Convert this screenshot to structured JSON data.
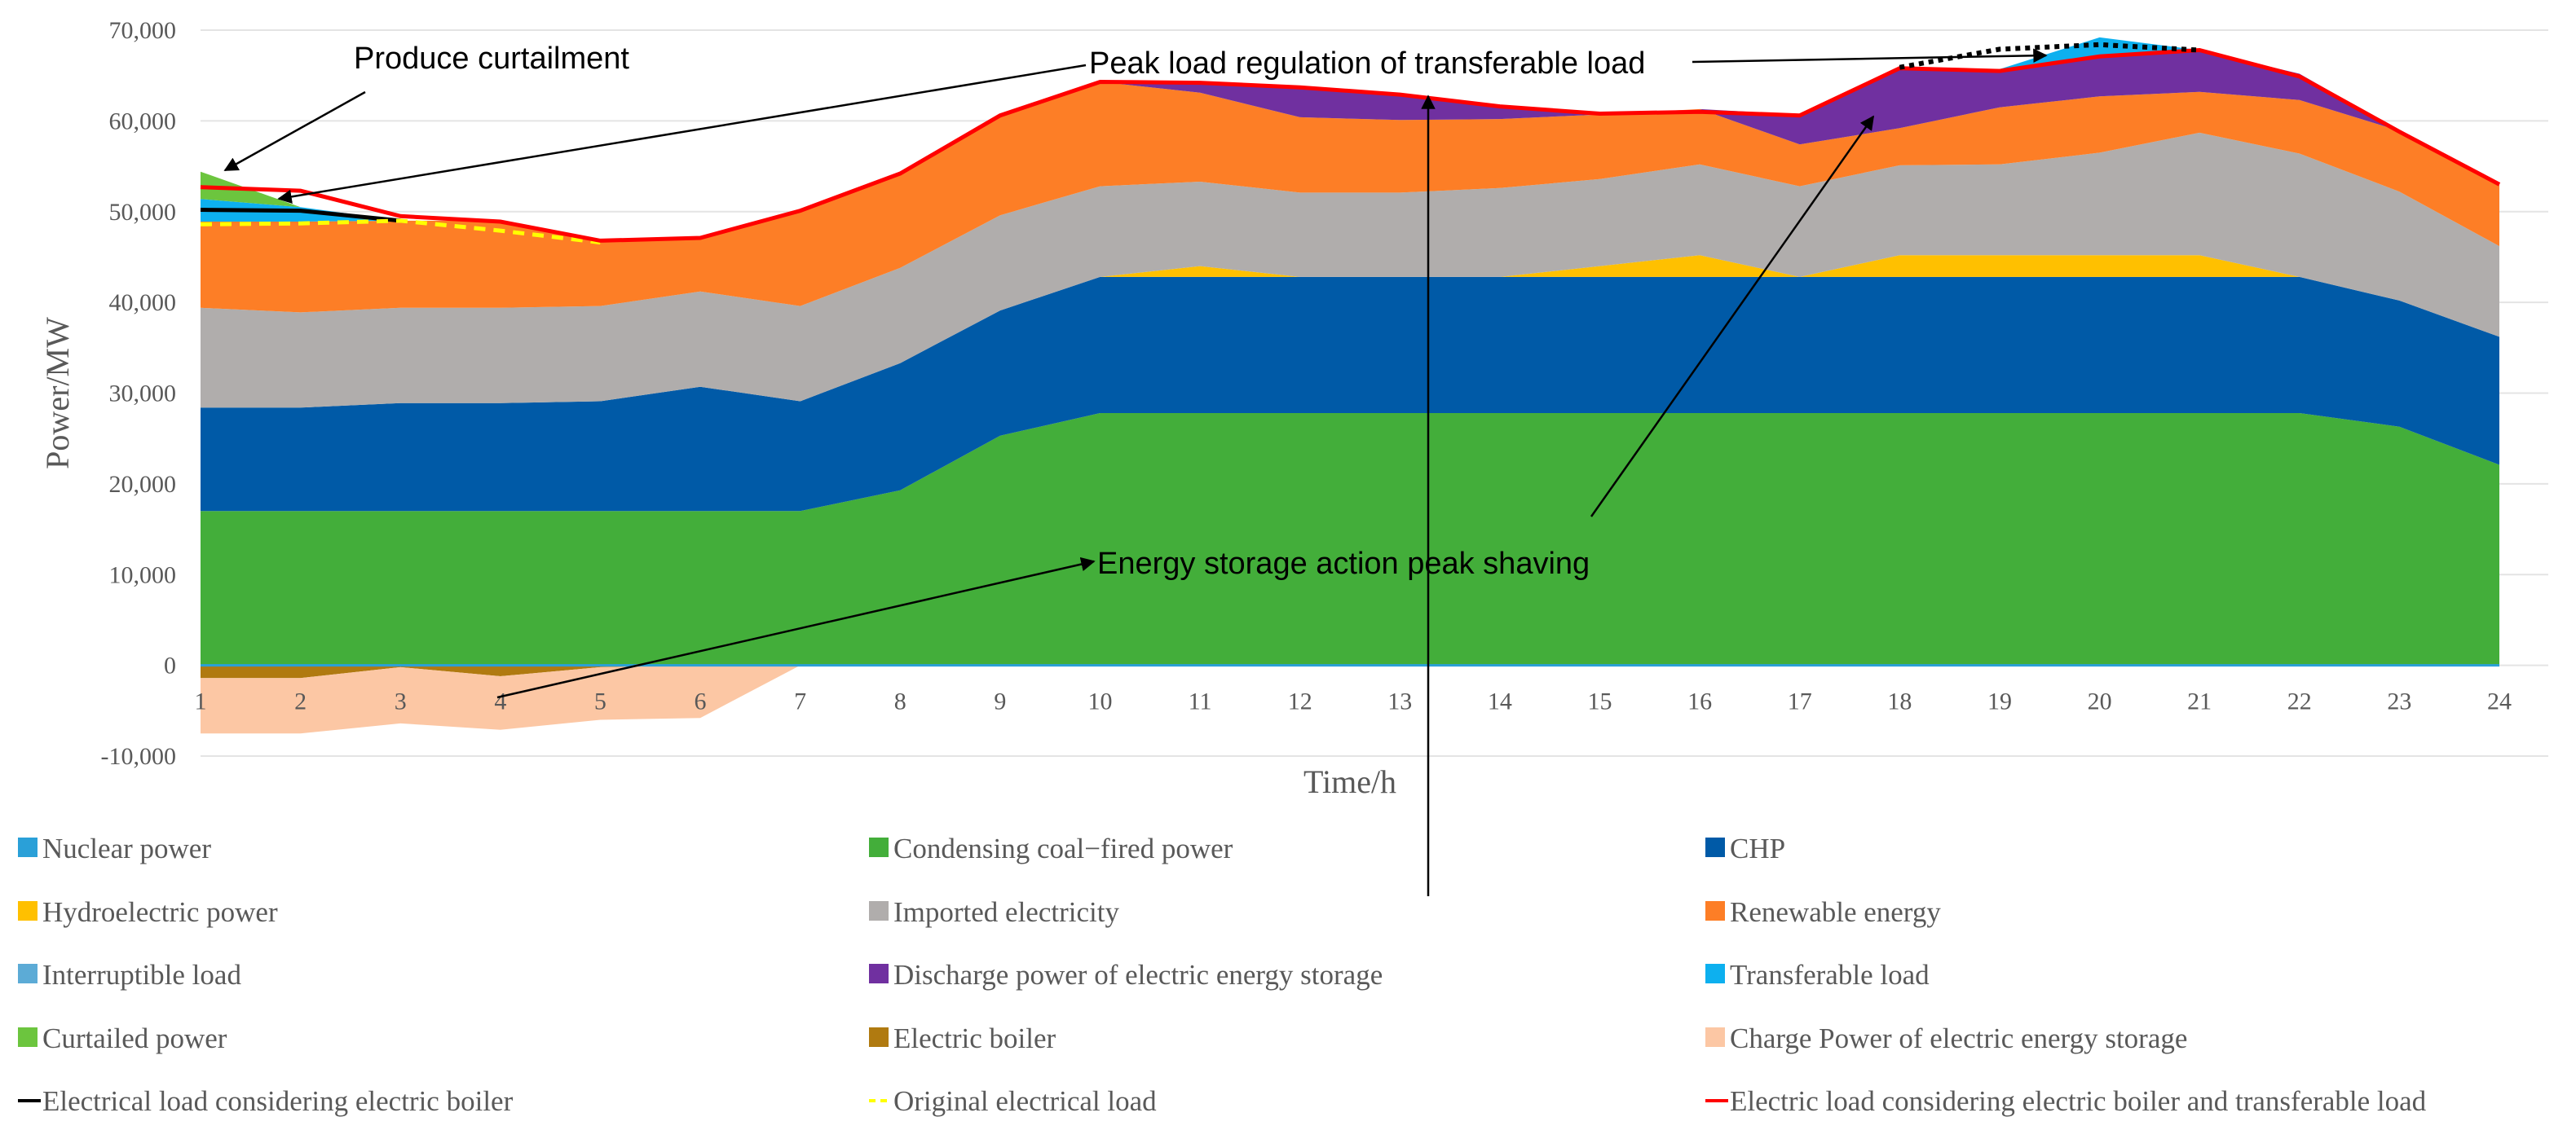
{
  "chart_data": {
    "type": "area",
    "title": "",
    "xlabel": "Time/h",
    "ylabel": "Power/MW",
    "ylim": [
      -10000,
      70000
    ],
    "yticks": [
      -10000,
      0,
      10000,
      20000,
      30000,
      40000,
      50000,
      60000,
      70000
    ],
    "ytick_labels": [
      "-10,000",
      "0",
      "10,000",
      "20,000",
      "30,000",
      "40,000",
      "50,000",
      "60,000",
      "70,000"
    ],
    "x": [
      1,
      2,
      3,
      4,
      5,
      6,
      7,
      8,
      9,
      10,
      11,
      12,
      13,
      14,
      15,
      16,
      17,
      18,
      19,
      20,
      21,
      22,
      23,
      24
    ],
    "x_labels": [
      "1",
      "2",
      "3",
      "4",
      "5",
      "6",
      "7",
      "8",
      "9",
      "10",
      "11",
      "12",
      "13",
      "14",
      "15",
      "16",
      "17",
      "18",
      "19",
      "20",
      "21",
      "22",
      "23",
      "24"
    ],
    "grid": "horizontal",
    "legend_position": "bottom",
    "stacked_series": [
      {
        "name": "Nuclear power",
        "color": "#2aa0d8",
        "values": [
          100,
          100,
          100,
          100,
          100,
          100,
          100,
          100,
          100,
          100,
          100,
          100,
          100,
          100,
          100,
          100,
          100,
          100,
          100,
          100,
          100,
          100,
          100,
          100
        ]
      },
      {
        "name": "Condensing coal−fired power",
        "color": "#43ae3a",
        "values": [
          16900,
          16900,
          16900,
          16900,
          16900,
          16900,
          16900,
          19200,
          25200,
          27700,
          27700,
          27700,
          27700,
          27700,
          27700,
          27700,
          27700,
          27700,
          27700,
          27700,
          27700,
          27700,
          26200,
          22000
        ]
      },
      {
        "name": "CHP",
        "color": "#005aa7",
        "values": [
          11400,
          11400,
          11900,
          11900,
          12100,
          13700,
          12100,
          14000,
          13800,
          15000,
          15000,
          15000,
          15000,
          15000,
          15000,
          15000,
          15000,
          15000,
          15000,
          15000,
          15000,
          15000,
          13900,
          14100
        ]
      },
      {
        "name": "Hydroelectric power",
        "color": "#ffc000",
        "values": [
          0,
          0,
          0,
          0,
          0,
          0,
          0,
          0,
          0,
          0,
          1200,
          0,
          0,
          0,
          1200,
          2400,
          0,
          2400,
          2400,
          2400,
          2400,
          0,
          0,
          0
        ]
      },
      {
        "name": "Imported electricity",
        "color": "#b0adac",
        "values": [
          11000,
          10500,
          10500,
          10500,
          10500,
          10500,
          10500,
          10500,
          10500,
          10000,
          9300,
          9300,
          9300,
          9800,
          9600,
          10000,
          10000,
          9900,
          10000,
          11300,
          13500,
          13600,
          12000,
          10000
        ]
      },
      {
        "name": "Renewable energy",
        "color": "#fd7e26",
        "values": [
          9500,
          10000,
          9600,
          9600,
          7000,
          5800,
          10600,
          10500,
          11100,
          11500,
          9800,
          8300,
          8000,
          7600,
          7100,
          6100,
          4600,
          4100,
          6300,
          6200,
          4500,
          5900,
          6700,
          6900
        ]
      },
      {
        "name": "Interruptible load",
        "color": "#5cabd6",
        "values": [
          0,
          0,
          0,
          0,
          0,
          0,
          0,
          0,
          0,
          0,
          0,
          0,
          0,
          0,
          0,
          0,
          0,
          0,
          0,
          0,
          0,
          0,
          0,
          0
        ]
      },
      {
        "name": "Discharge power of electric energy storage",
        "color": "#7030a0",
        "values": [
          0,
          0,
          0,
          0,
          0,
          0,
          0,
          0,
          0,
          0,
          1200,
          3200,
          2900,
          1400,
          0,
          0,
          3300,
          6600,
          4200,
          4300,
          4600,
          2900,
          0,
          0
        ]
      },
      {
        "name": "Transferable load",
        "color": "#0db0ef",
        "values": [
          2500,
          1600,
          0,
          0,
          0,
          0,
          0,
          0,
          0,
          0,
          0,
          0,
          0,
          0,
          0,
          0,
          0,
          0,
          0,
          2200,
          0,
          0,
          0,
          0
        ]
      },
      {
        "name": "Curtailed power",
        "color": "#6cc53e",
        "values": [
          3000,
          0,
          0,
          0,
          0,
          0,
          0,
          0,
          0,
          0,
          0,
          0,
          0,
          0,
          0,
          0,
          0,
          0,
          0,
          0,
          0,
          0,
          0,
          0
        ]
      }
    ],
    "negative_series": [
      {
        "name": "Electric boiler",
        "color": "#b07a10",
        "values": [
          -1400,
          -1400,
          -200,
          -1200,
          -200,
          0,
          0,
          0,
          0,
          0,
          0,
          0,
          0,
          0,
          0,
          0,
          0,
          0,
          0,
          0,
          0,
          0,
          0,
          0
        ]
      },
      {
        "name": "Charge Power of electric energy storage",
        "color": "#fcc7a4",
        "values": [
          -6100,
          -6100,
          -6200,
          -5900,
          -5800,
          -5800,
          0,
          0,
          0,
          0,
          0,
          0,
          0,
          0,
          0,
          0,
          0,
          0,
          0,
          0,
          0,
          0,
          0,
          0
        ]
      }
    ],
    "line_series": [
      {
        "name": "Electrical load considering electric boiler",
        "color": "#000000",
        "style": "solid",
        "legend_label": "Electrical load considering electric boiler",
        "x": [
          1,
          2,
          3
        ],
        "values": [
          50200,
          50100,
          49000
        ]
      },
      {
        "name": "Original electrical load",
        "color": "#ffff00",
        "style": "dashed",
        "legend_label": "Original electrical load",
        "x": [
          1,
          2,
          3,
          4,
          5
        ],
        "values": [
          48600,
          48700,
          49000,
          47900,
          46600
        ]
      },
      {
        "name": "Electric load considering electric boiler and transferable load",
        "color": "#ff0000",
        "style": "solid",
        "legend_label": "Electric load considering electric boiler and transferable load",
        "x": [
          1,
          2,
          3,
          4,
          5,
          6,
          7,
          8,
          9,
          10,
          11,
          12,
          13,
          14,
          15,
          16,
          17,
          18,
          19,
          20,
          21,
          22,
          23,
          24
        ],
        "values": [
          52700,
          52300,
          49500,
          48900,
          46800,
          47100,
          50100,
          54200,
          60600,
          64300,
          64200,
          63700,
          62900,
          61600,
          60800,
          61000,
          60600,
          65800,
          65500,
          67100,
          67800,
          64900,
          58800,
          53000
        ]
      },
      {
        "name": "Pre-transfer load",
        "color": "#000000",
        "style": "dotted",
        "x": [
          18,
          19,
          20,
          21
        ],
        "values": [
          65900,
          67900,
          68400,
          67800
        ]
      }
    ],
    "annotations": [
      {
        "text": "Produce curtailment"
      },
      {
        "text": "Peak load regulation of transferable load"
      },
      {
        "text": "Energy storage action peak shaving"
      }
    ],
    "legend_entries": [
      {
        "label": "Nuclear power",
        "kind": "box",
        "color": "#2aa0d8"
      },
      {
        "label": "Condensing coal−fired power",
        "kind": "box",
        "color": "#43ae3a"
      },
      {
        "label": "CHP",
        "kind": "box",
        "color": "#005aa7"
      },
      {
        "label": "Hydroelectric power",
        "kind": "box",
        "color": "#ffc000"
      },
      {
        "label": "Imported electricity",
        "kind": "box",
        "color": "#b0adac"
      },
      {
        "label": "Renewable energy",
        "kind": "box",
        "color": "#fd7e26"
      },
      {
        "label": "Interruptible load",
        "kind": "box",
        "color": "#5cabd6"
      },
      {
        "label": "Discharge power of electric energy storage",
        "kind": "box",
        "color": "#7030a0"
      },
      {
        "label": "Transferable load",
        "kind": "box",
        "color": "#0db0ef"
      },
      {
        "label": "Curtailed power",
        "kind": "box",
        "color": "#6cc53e"
      },
      {
        "label": "Electric boiler",
        "kind": "box",
        "color": "#b07a10"
      },
      {
        "label": "Charge Power of electric energy storage",
        "kind": "box",
        "color": "#fcc7a4"
      },
      {
        "label": "Electrical load considering electric boiler",
        "kind": "line",
        "color": "#000000",
        "style": "solid"
      },
      {
        "label": "Original electrical load",
        "kind": "line",
        "color": "#ffff00",
        "style": "dashed"
      },
      {
        "label": "Electric load considering electric boiler and transferable load",
        "kind": "line",
        "color": "#ff0000",
        "style": "solid"
      }
    ]
  }
}
